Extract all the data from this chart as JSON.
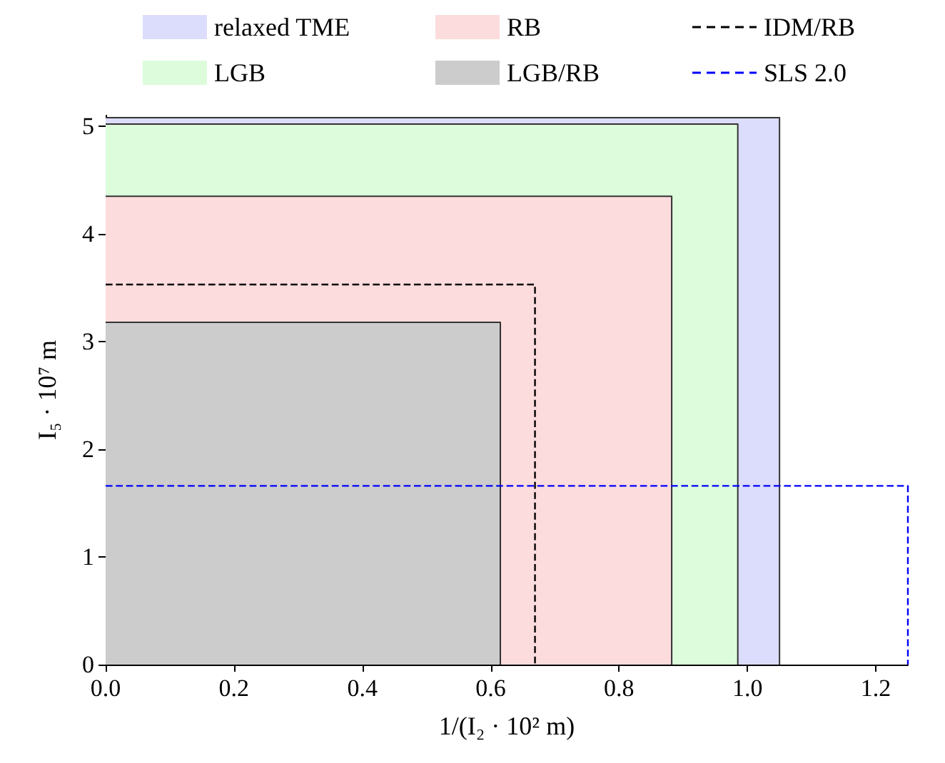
{
  "chart_data": {
    "type": "area",
    "xlabel": "1/(I₂ · 10² m)",
    "ylabel": "I₅ · 10⁷ m",
    "xlim": [
      0,
      1.25
    ],
    "ylim": [
      0,
      5.1
    ],
    "xticks": [
      {
        "value": 0,
        "label": "0.0"
      },
      {
        "value": 0.2,
        "label": "0.2"
      },
      {
        "value": 0.4,
        "label": "0.4"
      },
      {
        "value": 0.6,
        "label": "0.6"
      },
      {
        "value": 0.8,
        "label": "0.8"
      },
      {
        "value": 1,
        "label": "1.0"
      },
      {
        "value": 1.2,
        "label": "1.2"
      }
    ],
    "yticks": [
      0,
      1,
      2,
      3,
      4,
      5
    ],
    "grid": false,
    "legend": "top",
    "marker": "none",
    "series": [
      {
        "name": "relaxed TME",
        "color": "#dcdcfc",
        "x": [
          0,
          1.05,
          1.05
        ],
        "values": [
          5.08,
          5.08,
          0
        ]
      },
      {
        "name": "LGB",
        "color": "#dcfcdc",
        "x": [
          0,
          0.985,
          0.985
        ],
        "values": [
          5.02,
          5.02,
          0
        ]
      },
      {
        "name": "RB",
        "color": "#fcdcdc",
        "x": [
          0,
          0.882,
          0.882
        ],
        "values": [
          4.35,
          4.35,
          0
        ]
      },
      {
        "name": "LGB/RB",
        "color": "#cccccc",
        "x": [
          0,
          0.615,
          0.615
        ],
        "values": [
          3.18,
          3.18,
          0
        ]
      },
      {
        "name": "IDM/RB",
        "type": "line",
        "line_style": "dashed",
        "color": "#000000",
        "x": [
          0,
          0.669,
          0.669
        ],
        "values": [
          3.53,
          3.53,
          0
        ]
      },
      {
        "name": "SLS 2.0",
        "type": "line",
        "line_style": "dashed",
        "color": "#0000ff",
        "x": [
          0,
          1.25,
          1.25
        ],
        "values": [
          1.66,
          1.66,
          0
        ]
      }
    ]
  }
}
